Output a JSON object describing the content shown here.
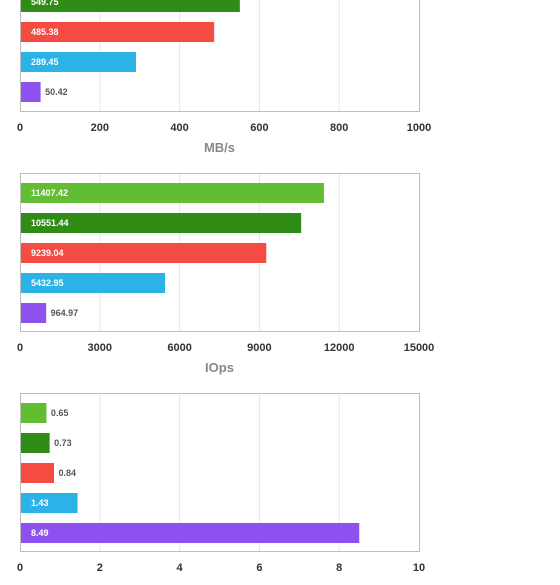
{
  "series_colors": [
    "#62bd33",
    "#318b17",
    "#f44b43",
    "#2bb3e8",
    "#8c51ef"
  ],
  "chart_data": [
    {
      "type": "bar",
      "orientation": "horizontal",
      "values": [
        null,
        549.75,
        485.38,
        289.45,
        50.42
      ],
      "value_labels": [
        "",
        "549.75",
        "485.38",
        "289.45",
        "50.42"
      ],
      "xlim": [
        0,
        1000
      ],
      "xticks": [
        "0",
        "200",
        "400",
        "600",
        "800",
        "1000"
      ],
      "xlabel": "MB/s",
      "grid": true
    },
    {
      "type": "bar",
      "orientation": "horizontal",
      "values": [
        11407.42,
        10551.44,
        9239.04,
        5432.95,
        964.97
      ],
      "value_labels": [
        "11407.42",
        "10551.44",
        "9239.04",
        "5432.95",
        "964.97"
      ],
      "xlim": [
        0,
        15000
      ],
      "xticks": [
        "0",
        "3000",
        "6000",
        "9000",
        "12000",
        "15000"
      ],
      "xlabel": "IOps",
      "grid": true
    },
    {
      "type": "bar",
      "orientation": "horizontal",
      "values": [
        0.65,
        0.73,
        0.84,
        1.43,
        8.49
      ],
      "value_labels": [
        "0.65",
        "0.73",
        "0.84",
        "1.43",
        "8.49"
      ],
      "xlim": [
        0,
        10
      ],
      "xticks": [
        "0",
        "2",
        "4",
        "6",
        "8",
        "10"
      ],
      "xlabel": "",
      "grid": true
    }
  ]
}
